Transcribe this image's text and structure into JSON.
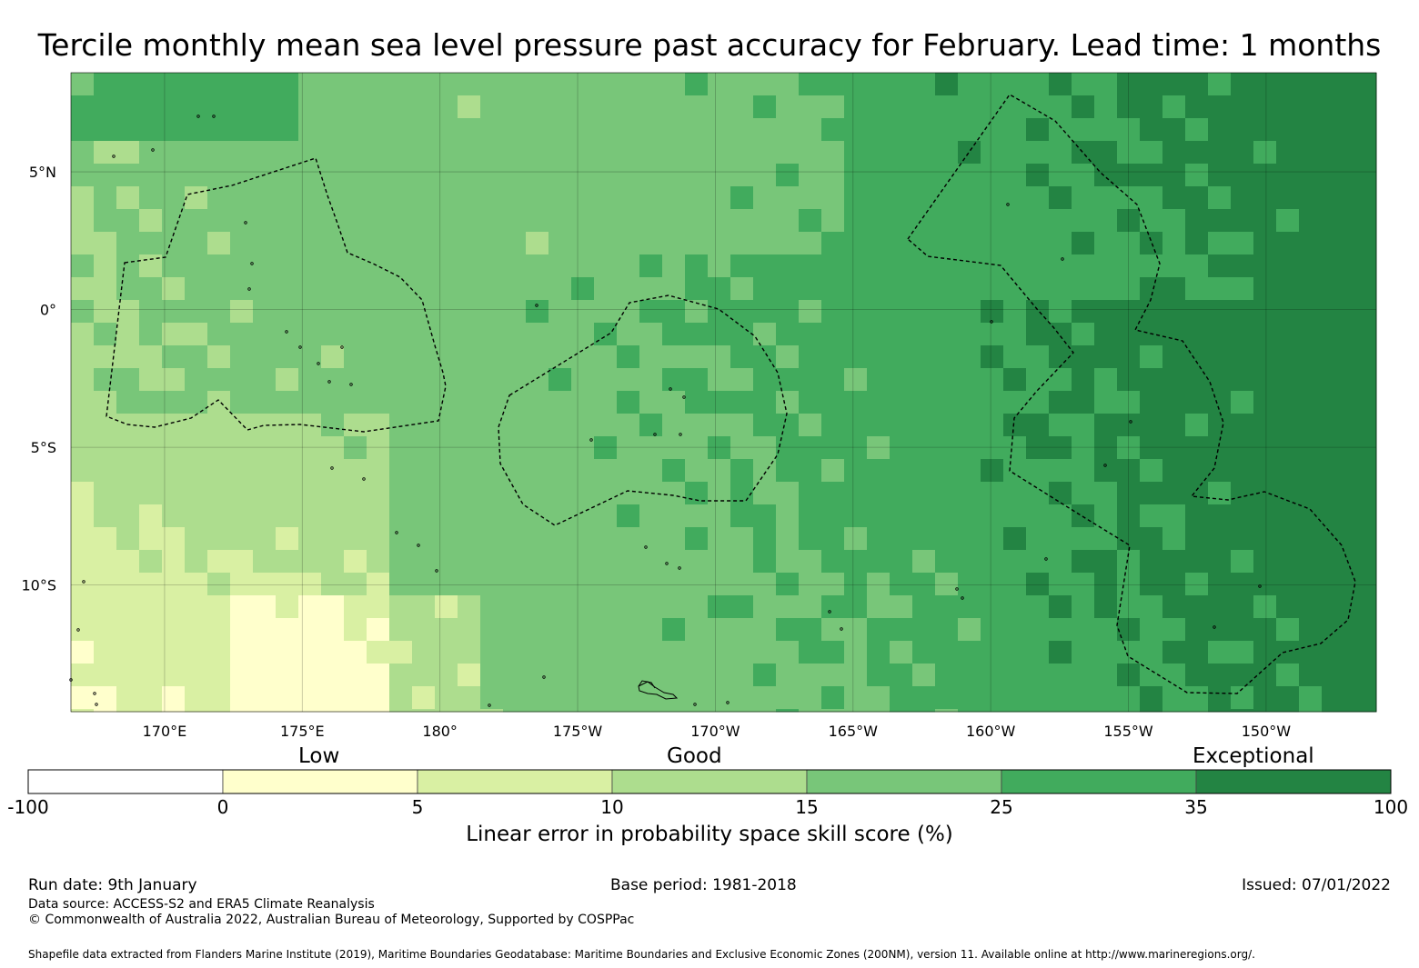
{
  "title": "Tercile monthly mean sea level pressure past accuracy for February. Lead time: 1 months",
  "map": {
    "lon_labels": [
      "170°E",
      "175°E",
      "180°",
      "175°W",
      "170°W",
      "165°W",
      "160°W",
      "155°W",
      "150°W"
    ],
    "lon_values": [
      170,
      175,
      180,
      185,
      190,
      195,
      200,
      205,
      210
    ],
    "lat_labels": [
      "5°N",
      "0°",
      "5°S",
      "10°S"
    ],
    "lat_values": [
      5,
      0,
      -5,
      -10
    ],
    "lon_range": [
      166.6,
      214
    ],
    "lat_range": [
      -14.6,
      8.6
    ],
    "field_description": "skill score grid, mostly 10-25% in west, 25-100% in east"
  },
  "legend": {
    "category_low": "Low",
    "category_good": "Good",
    "category_exceptional": "Exceptional",
    "boundaries": [
      "-100",
      "0",
      "5",
      "10",
      "15",
      "25",
      "35",
      "100"
    ],
    "colors": [
      "#ffffff",
      "#ffffcc",
      "#d9f0a3",
      "#addd8e",
      "#78c679",
      "#41ab5d",
      "#238443"
    ],
    "title": "Linear error in probability space skill score (%)"
  },
  "footer": {
    "run_date": "Run date: 9th January",
    "base_period": "Base period: 1981-2018",
    "issued": "Issued: 07/01/2022",
    "data_source": "Data source: ACCESS-S2 and ERA5 Climate Reanalysis",
    "copyright": "© Commonwealth of Australia 2022, Australian Bureau of Meteorology, Supported by COSPPac",
    "shapefile": "Shapefile data extracted from Flanders Marine Institute (2019), Maritime Boundaries Geodatabase: Maritime Boundaries and Exclusive Economic Zones (200NM), version 11. Available online at http://www.marineregions.org/."
  }
}
